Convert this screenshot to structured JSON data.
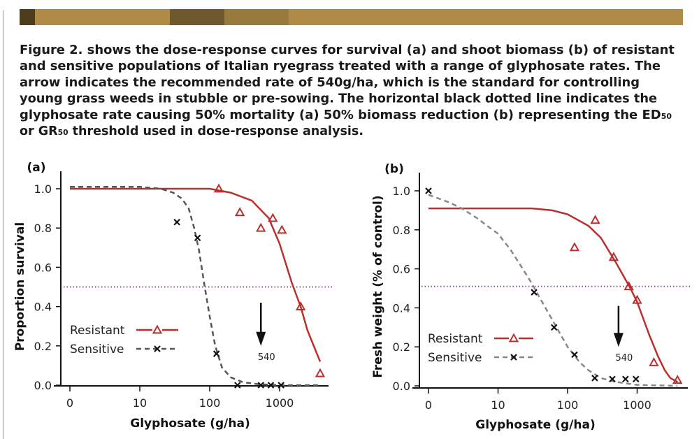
{
  "banner": {
    "segments": [
      "#4e3d1a",
      "#b08b47",
      "#6e582c",
      "#977a3c",
      "#b08b47"
    ]
  },
  "caption": {
    "lines": [
      [
        "Figure 2. shows the dose-response curves for survival (a) and shoot biomass (b) of resistant"
      ],
      [
        "and sensitive populations of Italian ryegrass treated with a range of glyphosate rates. The"
      ],
      [
        "arrow indicates the recommended rate of 540g/ha, which is the standard for controlling"
      ],
      [
        "young grass weeds in stubble or pre-sowing. The horizontal black dotted line indicates the"
      ],
      [
        "glyphosate rate causing 50% mortality (a) 50% biomass reduction (b) representing the ED",
        "50"
      ],
      [
        "or GR",
        "50",
        " threshold used in dose-response analysis."
      ]
    ]
  },
  "chart_data": [
    {
      "type": "scatter",
      "panel_label": "(a)",
      "xlabel": "Glyphosate (g/ha)",
      "ylabel": "Proportion survival",
      "x_scale": "log",
      "x_ticks": [
        0,
        10,
        100,
        1000
      ],
      "x_tick_labels": [
        "0",
        "10",
        "100",
        "1000"
      ],
      "y_ticks": [
        0.0,
        0.2,
        0.4,
        0.6,
        0.8,
        1.0
      ],
      "y_tick_labels": [
        "0.0",
        "0.2",
        "0.4",
        "0.6",
        "0.8",
        "1.0"
      ],
      "ylim": [
        0,
        1.0
      ],
      "grid": false,
      "legend_position": "bottom-left",
      "reference_line": {
        "y": 0.5,
        "style": "dotted",
        "color": "#8e4fa0"
      },
      "arrow": {
        "x": 540,
        "label": "540"
      },
      "series": [
        {
          "name": "Resistant",
          "color": "#b8312f",
          "marker": "triangle",
          "line": "solid",
          "points": [
            [
              135,
              1.0
            ],
            [
              270,
              0.88
            ],
            [
              540,
              0.8
            ],
            [
              800,
              0.85
            ],
            [
              1080,
              0.79
            ],
            [
              2000,
              0.4
            ],
            [
              3800,
              0.06
            ]
          ],
          "fitted_curve": [
            [
              0,
              1.0
            ],
            [
              10,
              1.0
            ],
            [
              100,
              1.0
            ],
            [
              200,
              0.98
            ],
            [
              400,
              0.94
            ],
            [
              700,
              0.85
            ],
            [
              1000,
              0.72
            ],
            [
              1300,
              0.59
            ],
            [
              1500,
              0.52
            ],
            [
              2000,
              0.4
            ],
            [
              2500,
              0.28
            ],
            [
              3000,
              0.21
            ],
            [
              3800,
              0.12
            ]
          ]
        },
        {
          "name": "Sensitive",
          "color": "#555555",
          "marker": "x",
          "line": "dashed",
          "points": [
            [
              34,
              0.83
            ],
            [
              67,
              0.75
            ],
            [
              125,
              0.16
            ],
            [
              250,
              0.0
            ],
            [
              540,
              0.0
            ],
            [
              750,
              0.0
            ],
            [
              1050,
              0.0
            ]
          ],
          "fitted_curve": [
            [
              0,
              1.01
            ],
            [
              10,
              1.01
            ],
            [
              20,
              1.0
            ],
            [
              30,
              0.98
            ],
            [
              40,
              0.95
            ],
            [
              50,
              0.9
            ],
            [
              60,
              0.8
            ],
            [
              70,
              0.69
            ],
            [
              85,
              0.5
            ],
            [
              100,
              0.35
            ],
            [
              120,
              0.2
            ],
            [
              150,
              0.09
            ],
            [
              200,
              0.04
            ],
            [
              300,
              0.015
            ],
            [
              500,
              0.005
            ],
            [
              1000,
              0.0
            ],
            [
              3800,
              0.0
            ]
          ]
        }
      ]
    },
    {
      "type": "scatter",
      "panel_label": "(b)",
      "xlabel": "Glyphosate (g/ha)",
      "ylabel": "Fresh weight (% of control)",
      "x_scale": "log",
      "x_ticks": [
        0,
        10,
        100,
        1000
      ],
      "x_tick_labels": [
        "0",
        "10",
        "100",
        "1000"
      ],
      "y_ticks": [
        0.0,
        0.2,
        0.4,
        0.6,
        0.8,
        1.0
      ],
      "y_tick_labels": [
        "0.0",
        "0.2",
        "0.4",
        "0.6",
        "0.8",
        "1.0"
      ],
      "ylim": [
        0,
        1.0
      ],
      "grid": false,
      "legend_position": "bottom-left",
      "reference_line": {
        "y": 0.51,
        "style": "dotted",
        "color": "#8e4fa0"
      },
      "arrow": {
        "x": 540,
        "label": "540"
      },
      "series": [
        {
          "name": "Resistant",
          "color": "#b8312f",
          "marker": "triangle",
          "line": "solid",
          "points": [
            [
              126,
              0.71
            ],
            [
              250,
              0.85
            ],
            [
              460,
              0.66
            ],
            [
              760,
              0.51
            ],
            [
              1000,
              0.44
            ],
            [
              1740,
              0.12
            ],
            [
              3800,
              0.03
            ]
          ],
          "fitted_curve": [
            [
              0,
              0.91
            ],
            [
              10,
              0.91
            ],
            [
              30,
              0.91
            ],
            [
              60,
              0.9
            ],
            [
              100,
              0.88
            ],
            [
              200,
              0.82
            ],
            [
              300,
              0.76
            ],
            [
              500,
              0.63
            ],
            [
              800,
              0.5
            ],
            [
              1000,
              0.43
            ],
            [
              1500,
              0.26
            ],
            [
              2000,
              0.15
            ],
            [
              2500,
              0.08
            ],
            [
              3000,
              0.04
            ],
            [
              3800,
              0.02
            ]
          ]
        },
        {
          "name": "Sensitive",
          "color": "#888888",
          "marker": "x",
          "line": "dashed",
          "points": [
            [
              0,
              1.0
            ],
            [
              33,
              0.48
            ],
            [
              64,
              0.3
            ],
            [
              126,
              0.16
            ],
            [
              246,
              0.04
            ],
            [
              440,
              0.035
            ],
            [
              680,
              0.035
            ],
            [
              960,
              0.035
            ]
          ],
          "fitted_curve": [
            [
              0,
              0.98
            ],
            [
              2,
              0.94
            ],
            [
              3,
              0.91
            ],
            [
              5,
              0.86
            ],
            [
              7,
              0.82
            ],
            [
              10,
              0.78
            ],
            [
              15,
              0.7
            ],
            [
              20,
              0.63
            ],
            [
              30,
              0.53
            ],
            [
              40,
              0.45
            ],
            [
              60,
              0.34
            ],
            [
              100,
              0.2
            ],
            [
              150,
              0.12
            ],
            [
              200,
              0.08
            ],
            [
              300,
              0.04
            ],
            [
              500,
              0.02
            ],
            [
              1000,
              0.005
            ],
            [
              3800,
              0.0
            ]
          ]
        }
      ]
    }
  ]
}
